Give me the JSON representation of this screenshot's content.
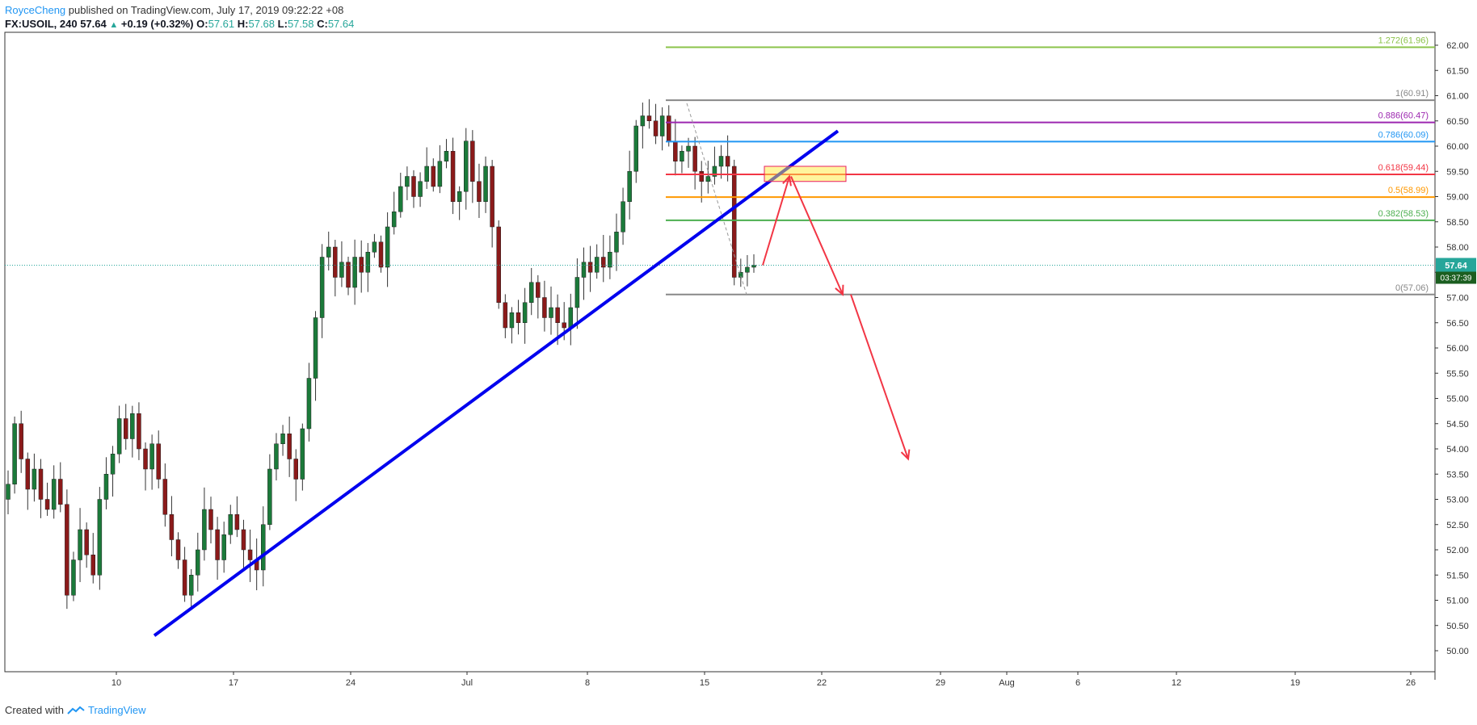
{
  "header": {
    "author": "RoyceCheng",
    "published": "published on TradingView.com, July 17, 2019 09:22:22 +08",
    "symbol": "FX:USOIL, 240",
    "last": "57.64",
    "change": "+0.19 (+0.32%)",
    "open_label": "O:",
    "open": "57.61",
    "high_label": "H:",
    "high": "57.68",
    "low_label": "L:",
    "low": "57.58",
    "close_label": "C:",
    "close": "57.64"
  },
  "footer": {
    "created_with": "Created with",
    "brand": "TradingView"
  },
  "chart_data": {
    "type": "candlestick",
    "y_range": [
      49.6,
      62.4
    ],
    "y_ticks": [
      "50.00",
      "50.50",
      "51.00",
      "51.50",
      "52.00",
      "52.50",
      "53.00",
      "53.50",
      "54.00",
      "54.50",
      "55.00",
      "55.50",
      "56.00",
      "56.50",
      "57.00",
      "57.50",
      "58.00",
      "58.50",
      "59.00",
      "59.50",
      "60.00",
      "60.50",
      "61.00",
      "61.50",
      "62.00"
    ],
    "x_ticks": [
      "10",
      "17",
      "24",
      "Jul",
      "8",
      "15",
      "22",
      "29",
      "Aug",
      "6",
      "12",
      "19",
      "26"
    ],
    "last_price": "57.64",
    "countdown": "03:37:39",
    "fib_levels": [
      {
        "label": "1.272(61.96)",
        "value": 61.96,
        "color": "#8bc34a"
      },
      {
        "label": "1(60.91)",
        "value": 60.91,
        "color": "#888888"
      },
      {
        "label": "0.886(60.47)",
        "value": 60.47,
        "color": "#9c27b0"
      },
      {
        "label": "0.786(60.09)",
        "value": 60.09,
        "color": "#2196f3"
      },
      {
        "label": "0.618(59.44)",
        "value": 59.44,
        "color": "#f23645"
      },
      {
        "label": "0.5(58.99)",
        "value": 58.99,
        "color": "#ff9800"
      },
      {
        "label": "0.382(58.53)",
        "value": 58.53,
        "color": "#4caf50"
      },
      {
        "label": "0(57.06)",
        "value": 57.06,
        "color": "#888888"
      }
    ],
    "trendline": {
      "from": [
        50.3,
        "Jun 12"
      ],
      "to": [
        60.3,
        "Jul 22"
      ],
      "color": "#0000ee"
    },
    "zone": {
      "low": 59.3,
      "high": 59.6,
      "color": "#ffeb3b"
    },
    "price_path": [
      53.3,
      54.5,
      53.8,
      53.2,
      53.6,
      53.0,
      52.8,
      53.4,
      52.9,
      51.1,
      51.8,
      52.4,
      51.9,
      51.5,
      53.0,
      53.5,
      53.9,
      54.6,
      54.2,
      54.7,
      54.0,
      53.6,
      54.1,
      53.4,
      52.7,
      52.2,
      51.8,
      51.1,
      51.5,
      52.0,
      52.8,
      52.4,
      51.8,
      52.3,
      52.7,
      52.4,
      52.0,
      51.8,
      51.6,
      52.5,
      53.6,
      54.1,
      54.3,
      53.8,
      53.4,
      54.4,
      55.4,
      56.6,
      57.8,
      58.0,
      57.4,
      57.7,
      57.2,
      57.8,
      57.5,
      57.9,
      58.1,
      57.6,
      58.4,
      58.7,
      59.2,
      59.4,
      59.0,
      59.3,
      59.6,
      59.2,
      59.7,
      59.9,
      58.9,
      59.1,
      60.1,
      59.3,
      58.9,
      59.6,
      58.4,
      56.9,
      56.4,
      56.7,
      56.5,
      56.9,
      57.3,
      57.0,
      56.6,
      56.8,
      56.5,
      56.4,
      56.8,
      57.4,
      57.7,
      57.5,
      57.8,
      57.6,
      57.9,
      58.3,
      58.9,
      59.5,
      60.4,
      60.6,
      60.5,
      60.2,
      60.6,
      60.1,
      59.7,
      59.9,
      60.0,
      59.5,
      59.3,
      59.4,
      59.6,
      59.8,
      59.6,
      57.4,
      57.5,
      57.6,
      57.64
    ],
    "projection": [
      57.64,
      59.4,
      57.06,
      53.8
    ]
  }
}
